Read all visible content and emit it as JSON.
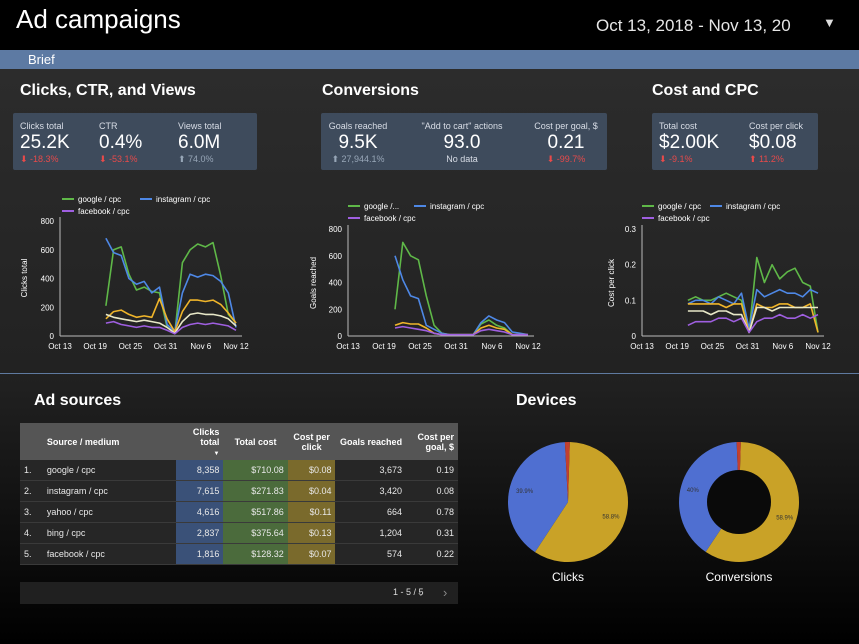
{
  "header": {
    "title": "Ad campaigns",
    "date_range": "Oct 13, 2018 - Nov 13, 20",
    "brief": "Brief"
  },
  "sections": {
    "clicks": "Clicks, CTR, and Views",
    "conversions": "Conversions",
    "cost": "Cost and CPC",
    "sources": "Ad sources",
    "devices": "Devices"
  },
  "kpis": {
    "clicks_total": {
      "label": "Clicks total",
      "value": "25.2K",
      "delta": "⬇ -18.3%"
    },
    "ctr": {
      "label": "CTR",
      "value": "0.4%",
      "delta": "⬇ -53.1%"
    },
    "views_total": {
      "label": "Views total",
      "value": "6.0M",
      "delta": "⬆ 74.0%"
    },
    "goals_reached": {
      "label": "Goals reached",
      "value": "9.5K",
      "delta": "⬆ 27,944.1%"
    },
    "add_to_cart": {
      "label": "\"Add to cart\" actions",
      "value": "93.0",
      "delta": "No data"
    },
    "cost_per_goal": {
      "label": "Cost per goal, $",
      "value": "0.21",
      "delta": "⬇ -99.7%"
    },
    "total_cost": {
      "label": "Total cost",
      "value": "$2.00K",
      "delta": "⬇ -9.1%"
    },
    "cost_per_click": {
      "label": "Cost per click",
      "value": "$0.08",
      "delta": "⬆ 11.2%"
    }
  },
  "colors": {
    "google": "#5fb848",
    "instagram": "#4e88e6",
    "facebook": "#9f5fe0",
    "yahoo": "#f0b52a",
    "bing": "#e8e8c8"
  },
  "chart_data": [
    {
      "type": "line",
      "ylabel": "Clicks total",
      "ylim": [
        0,
        800
      ],
      "yticks": [
        "0",
        "200",
        "400",
        "600",
        "800"
      ],
      "xticks": [
        "Oct 13",
        "Oct 19",
        "Oct 25",
        "Oct 31",
        "Nov 6",
        "Nov 12"
      ],
      "legend": [
        "google / cpc",
        "instagram / cpc",
        "facebook / cpc"
      ],
      "series": [
        {
          "name": "google / cpc",
          "color": "#5fb848",
          "values": [
            null,
            null,
            null,
            null,
            null,
            null,
            210,
            600,
            620,
            430,
            320,
            340,
            310,
            300,
            60,
            20,
            510,
            600,
            640,
            620,
            650,
            420,
            150,
            90,
            null
          ]
        },
        {
          "name": "instagram / cpc",
          "color": "#4e88e6",
          "values": [
            null,
            null,
            null,
            null,
            null,
            null,
            680,
            580,
            560,
            400,
            360,
            380,
            300,
            340,
            80,
            30,
            300,
            430,
            410,
            430,
            420,
            380,
            300,
            60,
            null
          ]
        },
        {
          "name": "yahoo / cpc",
          "color": "#f0b52a",
          "values": [
            null,
            null,
            null,
            null,
            null,
            null,
            120,
            170,
            180,
            150,
            130,
            140,
            130,
            260,
            120,
            30,
            170,
            250,
            250,
            240,
            250,
            220,
            160,
            90,
            null
          ]
        },
        {
          "name": "bing / cpc",
          "color": "#e8e8c8",
          "values": [
            null,
            null,
            null,
            null,
            null,
            null,
            150,
            130,
            120,
            110,
            100,
            110,
            100,
            90,
            60,
            20,
            100,
            150,
            160,
            150,
            150,
            140,
            120,
            70,
            null
          ]
        },
        {
          "name": "facebook / cpc",
          "color": "#9f5fe0",
          "values": [
            null,
            null,
            null,
            null,
            null,
            null,
            90,
            100,
            80,
            70,
            60,
            70,
            60,
            60,
            40,
            15,
            60,
            80,
            90,
            80,
            90,
            80,
            70,
            40,
            null
          ]
        }
      ]
    },
    {
      "type": "line",
      "ylabel": "Goals reached",
      "ylim": [
        0,
        800
      ],
      "yticks": [
        "0",
        "200",
        "400",
        "600",
        "800"
      ],
      "xticks": [
        "Oct 13",
        "Oct 19",
        "Oct 25",
        "Oct 31",
        "Nov 6",
        "Nov 12"
      ],
      "legend": [
        "google /...",
        "instagram / cpc",
        "facebook / cpc"
      ],
      "series": [
        {
          "name": "google /...",
          "color": "#5fb848",
          "values": [
            null,
            null,
            null,
            null,
            null,
            null,
            200,
            700,
            600,
            570,
            300,
            80,
            20,
            10,
            10,
            10,
            10,
            90,
            120,
            80,
            60,
            10,
            10,
            10,
            null
          ]
        },
        {
          "name": "instagram / cpc",
          "color": "#4e88e6",
          "values": [
            null,
            null,
            null,
            null,
            null,
            null,
            600,
            420,
            300,
            280,
            80,
            50,
            20,
            10,
            10,
            10,
            10,
            100,
            150,
            120,
            100,
            30,
            20,
            10,
            null
          ]
        },
        {
          "name": "yahoo / cpc",
          "color": "#f0b52a",
          "values": [
            null,
            null,
            null,
            null,
            null,
            null,
            80,
            100,
            90,
            90,
            60,
            20,
            10,
            10,
            10,
            10,
            10,
            60,
            80,
            60,
            50,
            10,
            10,
            10,
            null
          ]
        },
        {
          "name": "facebook / cpc",
          "color": "#9f5fe0",
          "values": [
            null,
            null,
            null,
            null,
            null,
            null,
            60,
            70,
            60,
            50,
            40,
            20,
            10,
            10,
            10,
            10,
            10,
            40,
            50,
            40,
            30,
            10,
            10,
            10,
            null
          ]
        }
      ]
    },
    {
      "type": "line",
      "ylabel": "Cost per click",
      "ylim": [
        0,
        0.3
      ],
      "yticks": [
        "0",
        "0.1",
        "0.2",
        "0.3"
      ],
      "xticks": [
        "Oct 13",
        "Oct 19",
        "Oct 25",
        "Oct 31",
        "Nov 6",
        "Nov 12"
      ],
      "legend": [
        "google / cpc",
        "instagram / cpc",
        "facebook / cpc"
      ],
      "series": [
        {
          "name": "google / cpc",
          "color": "#5fb848",
          "values": [
            null,
            null,
            null,
            null,
            null,
            null,
            0.1,
            0.11,
            0.1,
            0.1,
            0.11,
            0.12,
            0.11,
            0.1,
            0.01,
            0.22,
            0.15,
            0.2,
            0.16,
            0.18,
            0.19,
            0.15,
            0.14,
            0.01,
            null
          ]
        },
        {
          "name": "instagram / cpc",
          "color": "#4e88e6",
          "values": [
            null,
            null,
            null,
            null,
            null,
            null,
            0.09,
            0.1,
            0.1,
            0.09,
            0.11,
            0.1,
            0.09,
            0.12,
            0.02,
            0.13,
            0.11,
            0.12,
            0.13,
            0.12,
            0.12,
            0.11,
            0.13,
            0.12,
            null
          ]
        },
        {
          "name": "yahoo / cpc",
          "color": "#f0b52a",
          "values": [
            null,
            null,
            null,
            null,
            null,
            null,
            0.09,
            0.09,
            0.09,
            0.09,
            0.09,
            0.08,
            0.09,
            0.09,
            0.01,
            0.09,
            0.08,
            0.08,
            0.09,
            0.09,
            0.08,
            0.08,
            0.09,
            0.01,
            null
          ]
        },
        {
          "name": "bing / cpc",
          "color": "#e8e8c8",
          "values": [
            null,
            null,
            null,
            null,
            null,
            null,
            0.07,
            0.07,
            0.07,
            0.06,
            0.07,
            0.07,
            0.06,
            0.06,
            0.01,
            0.08,
            0.08,
            0.07,
            0.08,
            0.08,
            0.08,
            0.08,
            0.08,
            0.08,
            null
          ]
        },
        {
          "name": "facebook / cpc",
          "color": "#9f5fe0",
          "values": [
            null,
            null,
            null,
            null,
            null,
            null,
            0.03,
            0.04,
            0.04,
            0.04,
            0.05,
            0.05,
            0.04,
            0.05,
            0.01,
            0.04,
            0.05,
            0.05,
            0.06,
            0.05,
            0.05,
            0.06,
            0.05,
            0.06,
            null
          ]
        }
      ]
    },
    {
      "type": "table",
      "columns": [
        "Source / medium",
        "Clicks total",
        "Total cost",
        "Cost per click",
        "Goals reached",
        "Cost per goal, $"
      ],
      "rows": [
        [
          "1.",
          "google / cpc",
          "8,358",
          "$710.08",
          "$0.08",
          "3,673",
          "0.19"
        ],
        [
          "2.",
          "instagram / cpc",
          "7,615",
          "$271.83",
          "$0.04",
          "3,420",
          "0.08"
        ],
        [
          "3.",
          "yahoo / cpc",
          "4,616",
          "$517.86",
          "$0.11",
          "664",
          "0.78"
        ],
        [
          "4.",
          "bing / cpc",
          "2,837",
          "$375.64",
          "$0.13",
          "1,204",
          "0.31"
        ],
        [
          "5.",
          "facebook / cpc",
          "1,816",
          "$128.32",
          "$0.07",
          "574",
          "0.22"
        ]
      ],
      "sort_arrow": "▼",
      "pager": "1 - 5 / 5"
    },
    {
      "type": "pie",
      "title": "Clicks",
      "slices": [
        {
          "value": 58.8,
          "color": "#c9a227",
          "label": "58.8%"
        },
        {
          "value": 39.9,
          "color": "#4f6fd1",
          "label": "39.9%"
        },
        {
          "value": 1.3,
          "color": "#c2402f"
        }
      ]
    },
    {
      "type": "pie",
      "title": "Conversions",
      "donut": true,
      "slices": [
        {
          "value": 58.9,
          "color": "#c9a227",
          "label": "58.9%"
        },
        {
          "value": 40,
          "color": "#4f6fd1",
          "label": "40%"
        },
        {
          "value": 1.1,
          "color": "#c2402f"
        }
      ]
    }
  ]
}
